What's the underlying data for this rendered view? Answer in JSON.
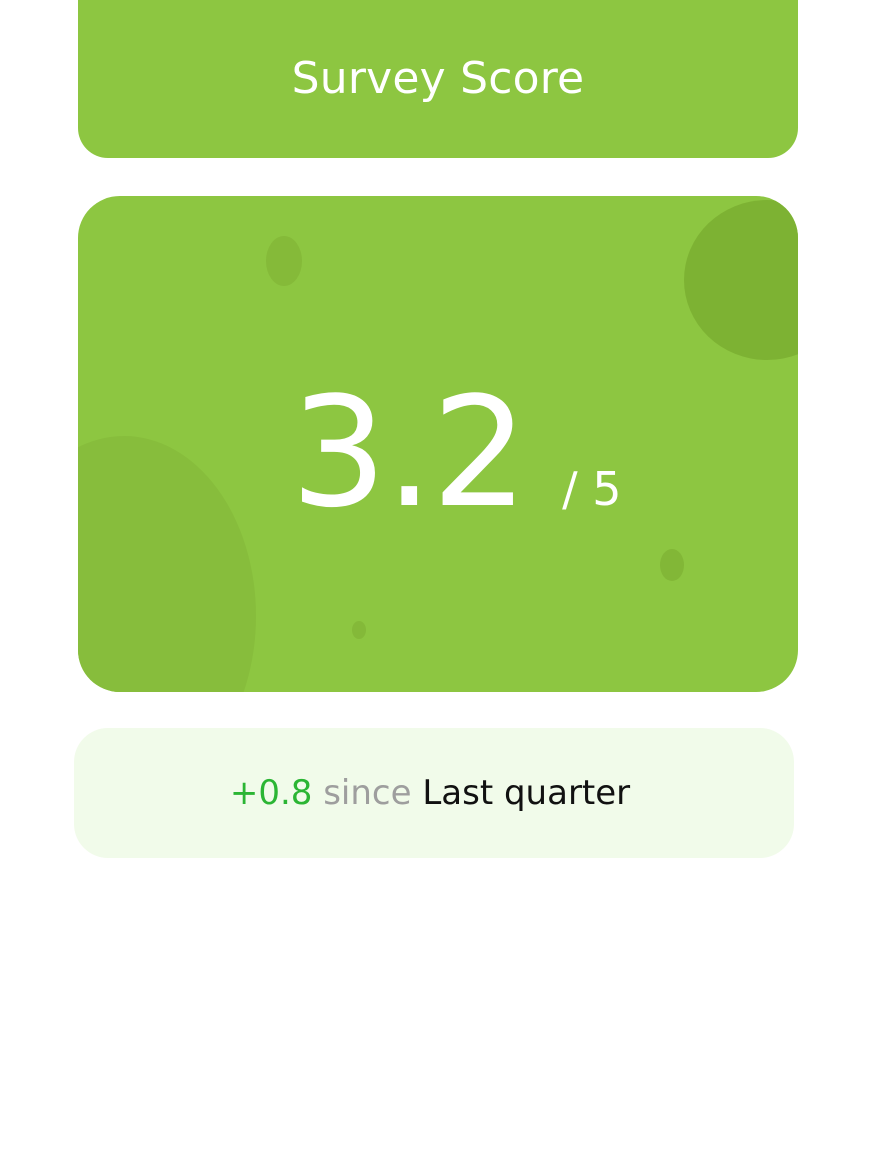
{
  "header": {
    "title": "Survey Score"
  },
  "score": {
    "value": "3.2",
    "max": "/ 5"
  },
  "change": {
    "delta": "+0.8",
    "since": "since",
    "period": "Last quarter"
  },
  "colors": {
    "card": "#8dc641",
    "change_bg": "#f1fbea",
    "positive": "#2bb534",
    "muted": "#9e9e9e"
  }
}
